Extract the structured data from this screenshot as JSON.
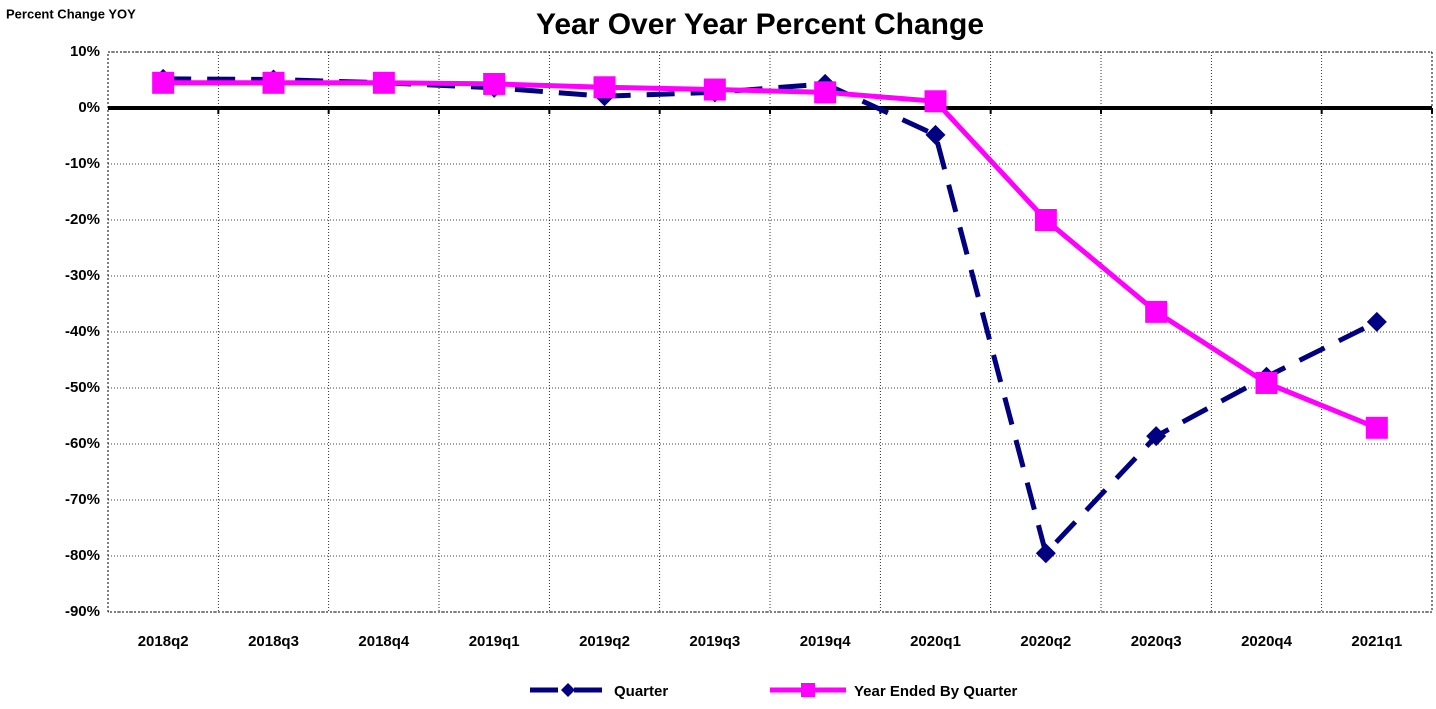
{
  "chart_data": {
    "type": "line",
    "title": "Year Over Year Percent Change",
    "y_label": "Percent Change YOY",
    "categories": [
      "2018q2",
      "2018q3",
      "2018q4",
      "2019q1",
      "2019q2",
      "2019q3",
      "2019q4",
      "2020q1",
      "2020q2",
      "2020q3",
      "2020q4",
      "2021q1"
    ],
    "series": [
      {
        "name": "Quarter",
        "color": "#000080",
        "line_style": "dashed",
        "marker": "diamond",
        "values": [
          5.2,
          5.1,
          4.5,
          3.6,
          2.1,
          2.8,
          4.3,
          -4.8,
          -79.5,
          -58.6,
          -48.0,
          -38.2
        ]
      },
      {
        "name": "Year Ended By Quarter",
        "color": "#ff00ff",
        "line_style": "solid",
        "marker": "square",
        "values": [
          4.5,
          4.5,
          4.5,
          4.3,
          3.7,
          3.3,
          2.8,
          1.2,
          -20.0,
          -36.4,
          -49.1,
          -57.1
        ]
      }
    ],
    "ylim": [
      -90,
      10
    ],
    "yticks": [
      {
        "value": -90,
        "label": "-90%"
      },
      {
        "value": -80,
        "label": "-80%"
      },
      {
        "value": -70,
        "label": "-70%"
      },
      {
        "value": -60,
        "label": "-60%"
      },
      {
        "value": -50,
        "label": "-50%"
      },
      {
        "value": -40,
        "label": "-40%"
      },
      {
        "value": -30,
        "label": "-30%"
      },
      {
        "value": -20,
        "label": "-20%"
      },
      {
        "value": -10,
        "label": "-10%"
      },
      {
        "value": 0,
        "label": "0%"
      },
      {
        "value": 10,
        "label": "10%"
      }
    ],
    "grid": true,
    "legend": "bottom"
  }
}
